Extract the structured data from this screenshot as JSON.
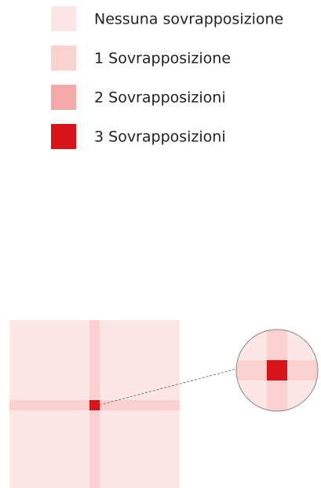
{
  "legend": [
    {
      "label": "Nessuna sovrapposizione",
      "color": "#fde6e6"
    },
    {
      "label": "1 Sovrapposizione",
      "color": "#fbd0d0"
    },
    {
      "label": "2 Sovrapposizioni",
      "color": "#f5a8a8"
    },
    {
      "label": "3 Sovrapposizioni",
      "color": "#d7141a"
    }
  ]
}
